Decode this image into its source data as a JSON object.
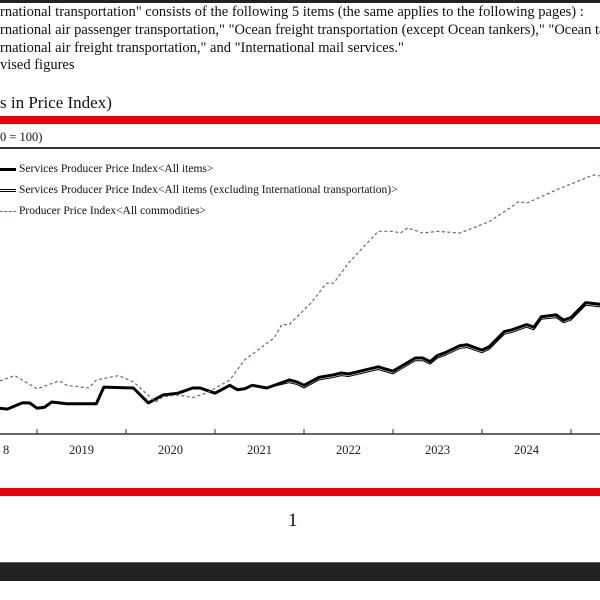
{
  "notes": [
    "rnational transportation\" consists of the following 5 items (the same applies to the following pages) :",
    "rnational air passenger transportation,\" \"Ocean freight transportation (except Ocean tankers),\" \"Ocean ta",
    "rnational air freight transportation,\" and \"International mail services.\"",
    "vised figures"
  ],
  "heading": "s in Price Index)",
  "base_note": "0 = 100)",
  "page_number": "1",
  "colors": {
    "accent_bar": "#e8000b",
    "sppi": "#000000",
    "ppi": "#5a6a8a"
  },
  "chart_data": {
    "type": "line",
    "title": "",
    "xlabel": "",
    "ylabel": "",
    "x_tick_labels": [
      "8",
      "2019",
      "2020",
      "2021",
      "2022",
      "2023",
      "2024"
    ],
    "grid": false,
    "legend": "top-left",
    "series": [
      {
        "name": "Services Producer Price Index<All items>",
        "style": "thick-solid",
        "x": [
          "2018-08",
          "2018-09",
          "2018-11",
          "2018-12",
          "2019-01",
          "2019-02",
          "2019-03",
          "2019-05",
          "2019-09",
          "2019-10",
          "2020-02",
          "2020-04",
          "2020-06",
          "2020-08",
          "2020-10",
          "2020-11",
          "2021-01",
          "2021-03",
          "2021-04",
          "2021-05",
          "2021-06",
          "2021-08",
          "2021-11",
          "2021-12",
          "2022-01",
          "2022-03",
          "2022-05",
          "2022-06",
          "2022-07",
          "2022-11",
          "2023-01",
          "2023-02",
          "2023-04",
          "2023-05",
          "2023-06",
          "2023-07",
          "2023-08",
          "2023-10",
          "2023-11",
          "2024-01",
          "2024-02",
          "2024-04",
          "2024-05",
          "2024-07",
          "2024-08",
          "2024-09",
          "2024-11",
          "2024-12",
          "2025-01",
          "2025-03",
          "2025-05"
        ],
        "y": [
          98.5,
          98.4,
          99.1,
          99.1,
          98.5,
          98.6,
          99.2,
          99.0,
          99.0,
          100.9,
          100.8,
          99.1,
          100.0,
          100.2,
          100.8,
          100.8,
          100.2,
          101.1,
          100.6,
          100.7,
          101.1,
          100.8,
          101.7,
          101.5,
          101.1,
          102.0,
          102.3,
          102.5,
          102.4,
          103.2,
          102.7,
          103.2,
          104.2,
          104.2,
          103.8,
          104.5,
          104.8,
          105.6,
          105.7,
          105.1,
          105.5,
          107.2,
          107.4,
          108.0,
          107.7,
          108.9,
          109.1,
          108.5,
          108.8,
          110.5,
          110.3
        ]
      },
      {
        "name": "Services Producer Price Index<All items (excluding International transportation)>",
        "style": "thin-solid",
        "x": [
          "2018-08",
          "2018-09",
          "2018-11",
          "2018-12",
          "2019-01",
          "2019-02",
          "2019-03",
          "2019-05",
          "2019-09",
          "2019-10",
          "2020-02",
          "2020-04",
          "2020-06",
          "2020-08",
          "2020-10",
          "2020-11",
          "2021-01",
          "2021-03",
          "2021-04",
          "2021-05",
          "2021-06",
          "2021-08",
          "2021-11",
          "2021-12",
          "2022-01",
          "2022-03",
          "2022-05",
          "2022-06",
          "2022-07",
          "2022-11",
          "2023-01",
          "2023-02",
          "2023-04",
          "2023-05",
          "2023-06",
          "2023-07",
          "2023-08",
          "2023-10",
          "2023-11",
          "2024-01",
          "2024-02",
          "2024-04",
          "2024-05",
          "2024-07",
          "2024-08",
          "2024-09",
          "2024-11",
          "2024-12",
          "2025-01",
          "2025-03",
          "2025-05"
        ],
        "y": [
          98.5,
          98.4,
          99.1,
          99.1,
          98.5,
          98.6,
          99.2,
          99.0,
          99.0,
          100.9,
          100.8,
          99.1,
          100.0,
          100.2,
          100.8,
          100.8,
          100.2,
          101.1,
          100.6,
          100.7,
          101.1,
          100.8,
          101.4,
          101.2,
          100.8,
          101.7,
          102.0,
          102.2,
          102.1,
          102.9,
          102.4,
          102.9,
          103.9,
          103.9,
          103.5,
          104.2,
          104.5,
          105.3,
          105.4,
          104.8,
          105.2,
          106.9,
          107.1,
          107.7,
          107.4,
          108.6,
          108.8,
          108.2,
          108.5,
          110.2,
          110.0
        ]
      },
      {
        "name": "Producer Price Index<All commodities>",
        "style": "dashed",
        "x": [
          "2018-08",
          "2018-10",
          "2019-01",
          "2019-04",
          "2019-05",
          "2019-08",
          "2019-09",
          "2019-12",
          "2020-02",
          "2020-05",
          "2020-06",
          "2020-08",
          "2020-10",
          "2020-12",
          "2021-03",
          "2021-05",
          "2021-09",
          "2021-10",
          "2021-11",
          "2022-02",
          "2022-04",
          "2022-05",
          "2022-07",
          "2022-09",
          "2022-11",
          "2023-01",
          "2023-02",
          "2023-03",
          "2023-05",
          "2023-07",
          "2023-10",
          "2024-02",
          "2024-05",
          "2024-06",
          "2024-07",
          "2024-11",
          "2025-04",
          "2025-05"
        ],
        "y": [
          101.6,
          102.2,
          100.7,
          101.6,
          101.1,
          100.8,
          101.7,
          102.2,
          101.5,
          99.2,
          99.8,
          100.0,
          99.7,
          100.3,
          101.7,
          104.0,
          106.5,
          108.0,
          108.0,
          110.5,
          112.7,
          112.7,
          115.0,
          116.8,
          118.6,
          118.6,
          118.4,
          119.0,
          118.4,
          118.6,
          118.4,
          119.7,
          121.4,
          122.0,
          121.8,
          123.3,
          125.0,
          124.9
        ]
      }
    ]
  }
}
